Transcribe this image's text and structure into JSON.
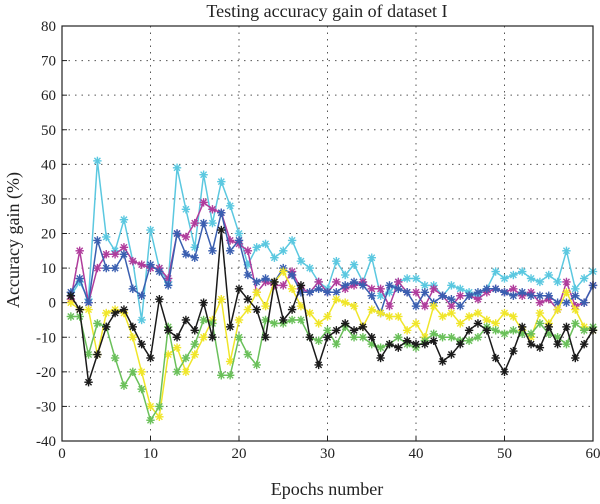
{
  "chart_data": {
    "type": "line",
    "title": "Testing accuracy gain of dataset I",
    "xlabel": "Epochs number",
    "ylabel": "Accuracy gain (%)",
    "xlim": [
      0,
      60
    ],
    "ylim": [
      -40,
      80
    ],
    "xticks": [
      0,
      10,
      20,
      30,
      40,
      50,
      60
    ],
    "yticks": [
      -40,
      -30,
      -20,
      -10,
      0,
      10,
      20,
      30,
      40,
      50,
      60,
      70,
      80
    ],
    "grid": true,
    "grid_style": "dotted",
    "marker": "asterisk",
    "x": [
      1,
      2,
      3,
      4,
      5,
      6,
      7,
      8,
      9,
      10,
      11,
      12,
      13,
      14,
      15,
      16,
      17,
      18,
      19,
      20,
      21,
      22,
      23,
      24,
      25,
      26,
      27,
      28,
      29,
      30,
      31,
      32,
      33,
      34,
      35,
      36,
      37,
      38,
      39,
      40,
      41,
      42,
      43,
      44,
      45,
      46,
      47,
      48,
      49,
      50,
      51,
      52,
      53,
      54,
      55,
      56,
      57,
      58,
      59,
      60
    ],
    "series": [
      {
        "color": "#5bc8e0",
        "values": [
          2,
          6,
          1,
          41,
          19,
          15,
          24,
          12,
          -5,
          21,
          10,
          6,
          39,
          27,
          16,
          37,
          23,
          35,
          28,
          20,
          11,
          16,
          17,
          13,
          15,
          18,
          12,
          10,
          6,
          4,
          12,
          8,
          11,
          6,
          13,
          2,
          3,
          6,
          7,
          7,
          5,
          5,
          2,
          5,
          4,
          3,
          2,
          4,
          9,
          7,
          8,
          9,
          7,
          6,
          8,
          6,
          15,
          4,
          7,
          9
        ]
      },
      {
        "color": "#b03c9c",
        "values": [
          1,
          15,
          0,
          10,
          14,
          14,
          16,
          12,
          11,
          10,
          10,
          7,
          20,
          19,
          23,
          29,
          27,
          26,
          18,
          17,
          15,
          3,
          6,
          5,
          5,
          9,
          4,
          3,
          6,
          3,
          6,
          4,
          5,
          6,
          4,
          4,
          -1,
          6,
          3,
          3,
          -1,
          4,
          2,
          -1,
          2,
          2,
          1,
          3,
          4,
          3,
          4,
          2,
          3,
          0,
          1,
          -2,
          6,
          -1,
          0,
          5
        ]
      },
      {
        "color": "#3a5fb0",
        "values": [
          3,
          7,
          0,
          18,
          10,
          10,
          14,
          4,
          2,
          11,
          9,
          5,
          20,
          14,
          13,
          23,
          15,
          26,
          15,
          18,
          8,
          6,
          7,
          6,
          10,
          8,
          3,
          3,
          4,
          3,
          3,
          5,
          6,
          5,
          2,
          -3,
          5,
          4,
          3,
          -1,
          3,
          0,
          2,
          1,
          -1,
          2,
          3,
          4,
          4,
          3,
          2,
          3,
          2,
          2,
          2,
          0,
          0,
          2,
          0,
          5
        ]
      },
      {
        "color": "#f0e62a",
        "values": [
          0,
          -2,
          -2,
          -15,
          -3,
          -2,
          -3,
          -10,
          -20,
          -30,
          -33,
          -15,
          -13,
          -20,
          -15,
          -10,
          -5,
          1,
          -17,
          -5,
          -2,
          3,
          -1,
          6,
          9,
          4,
          -1,
          -3,
          -6,
          -4,
          1,
          0,
          -1,
          -7,
          -2,
          -3,
          -4,
          -4,
          -8,
          -6,
          -10,
          -1,
          -4,
          -3,
          -6,
          -4,
          -3,
          -5,
          -6,
          -3,
          -4,
          -8,
          -10,
          -3,
          -6,
          -2,
          3,
          -2,
          -7,
          -8
        ]
      },
      {
        "color": "#6ac05a",
        "values": [
          -4,
          -4,
          -15,
          -6,
          -7,
          -16,
          -24,
          -20,
          -25,
          -34,
          -30,
          -7,
          -20,
          -16,
          -12,
          -5,
          -6,
          -21,
          -21,
          -10,
          -15,
          -18,
          -5,
          -6,
          -6,
          -5,
          -5,
          -10,
          -11,
          -8,
          -12,
          -7,
          -10,
          -10,
          -12,
          -13,
          -12,
          -10,
          -12,
          -13,
          -11,
          -9,
          -10,
          -10,
          -11,
          -11,
          -10,
          -7,
          -8,
          -9,
          -8,
          -9,
          -9,
          -6,
          -9,
          -10,
          -12,
          -6,
          -8,
          -7
        ]
      },
      {
        "color": "#1a1a1a",
        "values": [
          2,
          -2,
          -23,
          -15,
          -7,
          -3,
          -2,
          -7,
          -12,
          -16,
          1,
          -8,
          -10,
          -5,
          -8,
          0,
          -10,
          21,
          -7,
          4,
          1,
          -2,
          -10,
          6,
          -5,
          -2,
          5,
          -10,
          -18,
          -10,
          -8,
          -6,
          -8,
          -7,
          -10,
          -16,
          -12,
          -13,
          -11,
          -12,
          -12,
          -11,
          -17,
          -15,
          -12,
          -8,
          -6,
          -8,
          -16,
          -20,
          -14,
          -7,
          -12,
          -13,
          -7,
          -12,
          -7,
          -16,
          -12,
          -8
        ]
      }
    ]
  }
}
